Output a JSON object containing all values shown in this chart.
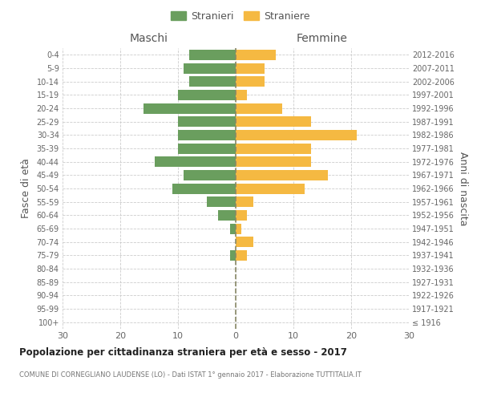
{
  "age_groups": [
    "100+",
    "95-99",
    "90-94",
    "85-89",
    "80-84",
    "75-79",
    "70-74",
    "65-69",
    "60-64",
    "55-59",
    "50-54",
    "45-49",
    "40-44",
    "35-39",
    "30-34",
    "25-29",
    "20-24",
    "15-19",
    "10-14",
    "5-9",
    "0-4"
  ],
  "birth_years": [
    "≤ 1916",
    "1917-1921",
    "1922-1926",
    "1927-1931",
    "1932-1936",
    "1937-1941",
    "1942-1946",
    "1947-1951",
    "1952-1956",
    "1957-1961",
    "1962-1966",
    "1967-1971",
    "1972-1976",
    "1977-1981",
    "1982-1986",
    "1987-1991",
    "1992-1996",
    "1997-2001",
    "2002-2006",
    "2007-2011",
    "2012-2016"
  ],
  "males": [
    0,
    0,
    0,
    0,
    0,
    1,
    0,
    1,
    3,
    5,
    11,
    9,
    14,
    10,
    10,
    10,
    16,
    10,
    8,
    9,
    8
  ],
  "females": [
    0,
    0,
    0,
    0,
    0,
    2,
    3,
    1,
    2,
    3,
    12,
    16,
    13,
    13,
    21,
    13,
    8,
    2,
    5,
    5,
    7
  ],
  "male_color": "#6a9e5e",
  "female_color": "#f5b942",
  "title": "Popolazione per cittadinanza straniera per età e sesso - 2017",
  "subtitle": "COMUNE DI CORNEGLIANO LAUDENSE (LO) - Dati ISTAT 1° gennaio 2017 - Elaborazione TUTTITALIA.IT",
  "xlabel_left": "Maschi",
  "xlabel_right": "Femmine",
  "ylabel_left": "Fasce di età",
  "ylabel_right": "Anni di nascita",
  "legend_male": "Stranieri",
  "legend_female": "Straniere",
  "xlim": 30,
  "background_color": "#ffffff",
  "grid_color": "#cccccc",
  "dashed_line_color": "#888866"
}
